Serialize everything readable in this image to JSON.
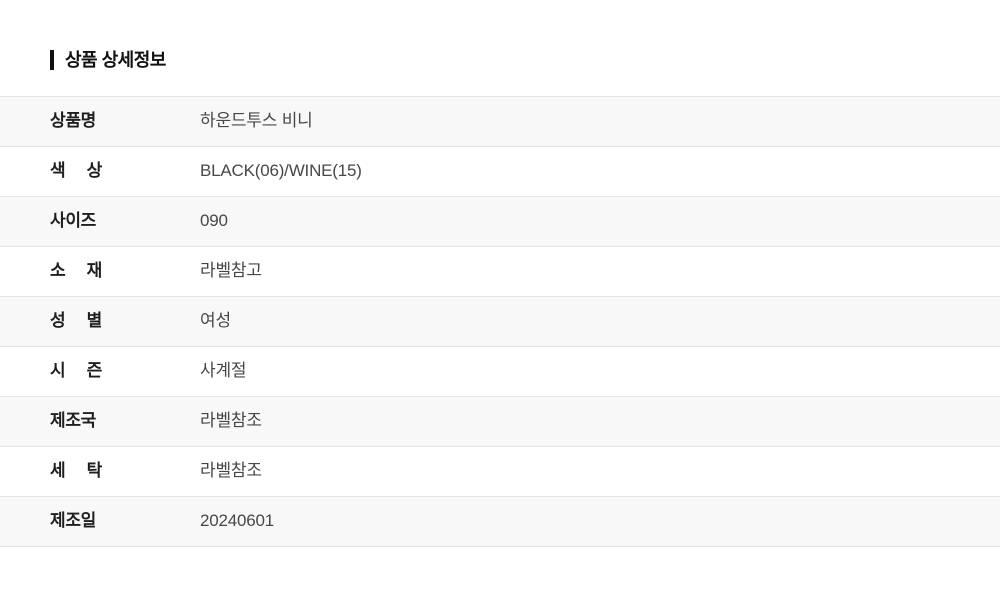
{
  "section": {
    "title": "상품 상세정보"
  },
  "table": {
    "rows": [
      {
        "label": "상품명",
        "value": "하운드투스 비니"
      },
      {
        "label": "색 상",
        "value": "BLACK(06)/WINE(15)"
      },
      {
        "label": "사이즈",
        "value": "090"
      },
      {
        "label": "소 재",
        "value": "라벨참고"
      },
      {
        "label": "성 별",
        "value": "여성"
      },
      {
        "label": "시 즌",
        "value": "사계절"
      },
      {
        "label": "제조국",
        "value": "라벨참조"
      },
      {
        "label": "세 탁",
        "value": "라벨참조"
      },
      {
        "label": "제조일",
        "value": "20240601"
      }
    ]
  },
  "colors": {
    "accent": "#111111",
    "stripe": "#f8f8f8",
    "border": "#e3e3e3",
    "label_text": "#1f1f1f",
    "value_text": "#474747",
    "title_text": "#111111"
  }
}
